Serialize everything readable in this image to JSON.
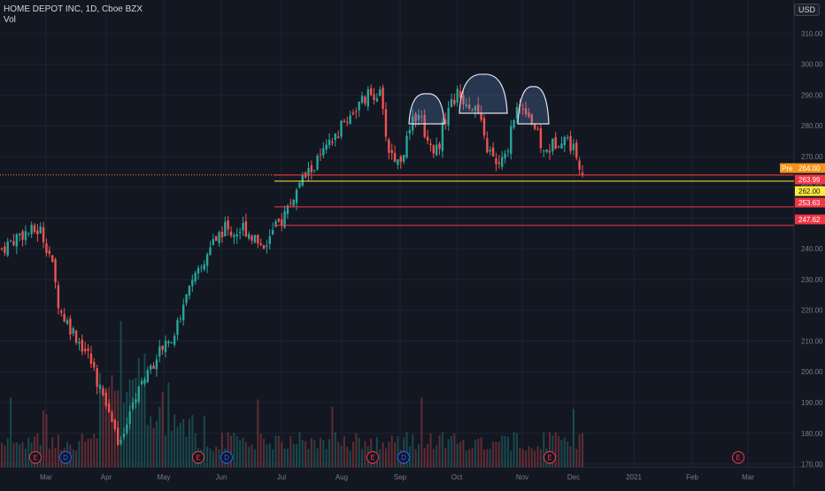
{
  "chart_data": {
    "type": "candlestick",
    "title": "HOME DEPOT INC, 1D, Cboe BZX",
    "volume_label": "Vol",
    "currency": "USD",
    "x_ticks": [
      "Mar",
      "Apr",
      "May",
      "Jun",
      "Jul",
      "Aug",
      "Sep",
      "Oct",
      "Nov",
      "Dec",
      "2021",
      "Feb",
      "Mar"
    ],
    "y_ticks": [
      170,
      180,
      190,
      200,
      210,
      220,
      230,
      240,
      250,
      260,
      270,
      280,
      290,
      300,
      310
    ],
    "ylim": [
      169,
      314
    ],
    "price_trend": [
      [
        0,
        240
      ],
      [
        4,
        245
      ],
      [
        8,
        246
      ],
      [
        10,
        238
      ],
      [
        12,
        220
      ],
      [
        14,
        215
      ],
      [
        16,
        210
      ],
      [
        18,
        205
      ],
      [
        20,
        196
      ],
      [
        22,
        188
      ],
      [
        24,
        178
      ],
      [
        26,
        182
      ],
      [
        28,
        195
      ],
      [
        30,
        200
      ],
      [
        32,
        205
      ],
      [
        34,
        210
      ],
      [
        36,
        213
      ],
      [
        38,
        225
      ],
      [
        40,
        230
      ],
      [
        42,
        236
      ],
      [
        44,
        243
      ],
      [
        46,
        247
      ],
      [
        48,
        245
      ],
      [
        50,
        247
      ],
      [
        52,
        244
      ],
      [
        54,
        241
      ],
      [
        56,
        245
      ],
      [
        58,
        250
      ],
      [
        60,
        256
      ],
      [
        62,
        262
      ],
      [
        64,
        266
      ],
      [
        66,
        270
      ],
      [
        68,
        274
      ],
      [
        70,
        279
      ],
      [
        72,
        284
      ],
      [
        74,
        287
      ],
      [
        76,
        290
      ],
      [
        78,
        291
      ],
      [
        80,
        272
      ],
      [
        82,
        268
      ],
      [
        84,
        276
      ],
      [
        86,
        286
      ],
      [
        88,
        275
      ],
      [
        90,
        272
      ],
      [
        92,
        285
      ],
      [
        94,
        290
      ],
      [
        96,
        288
      ],
      [
        98,
        286
      ],
      [
        100,
        274
      ],
      [
        102,
        267
      ],
      [
        104,
        269
      ],
      [
        106,
        285
      ],
      [
        108,
        287
      ],
      [
        110,
        280
      ],
      [
        112,
        271
      ],
      [
        114,
        274
      ],
      [
        116,
        277
      ],
      [
        118,
        273
      ],
      [
        120,
        266
      ]
    ],
    "lines": [
      {
        "price": 264.0,
        "color": "#f7931a",
        "style": "dotted",
        "label": "Pre",
        "box_label": "264.00"
      },
      {
        "price": 263.99,
        "color": "#f23645",
        "style": "solid",
        "box_label": "263.99"
      },
      {
        "price": 262.0,
        "color": "#ffeb3b",
        "style": "solid",
        "box_label": "262.00"
      },
      {
        "price": 253.63,
        "color": "#f23645",
        "style": "solid",
        "box_label": "253.63"
      },
      {
        "price": 247.62,
        "color": "#f23645",
        "style": "solid",
        "box_label": "247.62"
      }
    ],
    "pattern": "head-and-shoulders",
    "event_markers": [
      {
        "label": "E",
        "color": "#f23645"
      },
      {
        "label": "D",
        "color": "#2962ff"
      },
      {
        "label": "E",
        "color": "#f23645"
      },
      {
        "label": "D",
        "color": "#2962ff"
      },
      {
        "label": "E",
        "color": "#f23645"
      },
      {
        "label": "D",
        "color": "#2962ff"
      },
      {
        "label": "E",
        "color": "#f23645"
      },
      {
        "label": "E",
        "color": "#f23645"
      }
    ],
    "colors": {
      "up": "#26a69a",
      "down": "#ef5350",
      "background": "#131722",
      "grid": "#1f2330"
    }
  }
}
